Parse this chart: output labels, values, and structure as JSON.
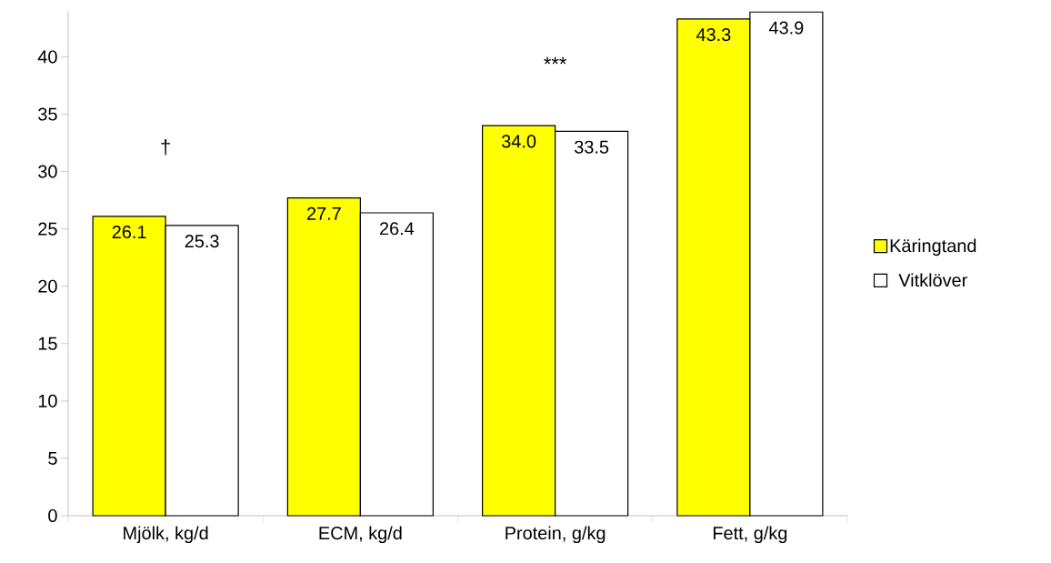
{
  "chart_data": {
    "type": "bar",
    "categories": [
      "Mjölk, kg/d",
      "ECM, kg/d",
      "Protein, g/kg",
      "Fett, g/kg"
    ],
    "series": [
      {
        "name": "Käringtand",
        "color": "#ffff00",
        "values": [
          26.1,
          27.7,
          34.0,
          43.3
        ],
        "value_labels": [
          "26.1",
          "27.7",
          "34.0",
          "43.3"
        ]
      },
      {
        "name": "Vitklöver",
        "color": "#ffffff",
        "values": [
          25.3,
          26.4,
          33.5,
          43.9
        ],
        "value_labels": [
          "25.3",
          "26.4",
          "33.5",
          "43.9"
        ]
      }
    ],
    "ylim": [
      0,
      44
    ],
    "yticks": [
      0,
      5,
      10,
      15,
      20,
      25,
      30,
      35,
      40
    ],
    "annotations": [
      "†",
      "***"
    ],
    "legend": "right",
    "grid": false
  }
}
